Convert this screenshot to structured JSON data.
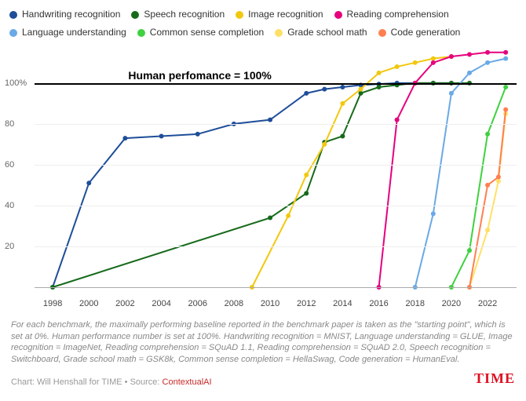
{
  "legend": [
    {
      "label": "Handwriting recognition",
      "color": "#1f4e99"
    },
    {
      "label": "Speech recognition",
      "color": "#166a1a"
    },
    {
      "label": "Image recognition",
      "color": "#f2c80f"
    },
    {
      "label": "Reading comprehension",
      "color": "#e6007e"
    },
    {
      "label": "Language understanding",
      "color": "#6aa9e6"
    },
    {
      "label": "Common sense completion",
      "color": "#3fd13f"
    },
    {
      "label": "Grade school math",
      "color": "#ffe066"
    },
    {
      "label": "Code generation",
      "color": "#ff7f50"
    }
  ],
  "legend_rows": [
    [
      0,
      1,
      2,
      3
    ],
    [
      4,
      5,
      6,
      7
    ]
  ],
  "chart": {
    "type": "line",
    "xlim": [
      1997,
      2023.6
    ],
    "ylim": [
      -5,
      118
    ],
    "xticks": [
      1998,
      2000,
      2002,
      2004,
      2006,
      2008,
      2010,
      2012,
      2014,
      2016,
      2018,
      2020,
      2022
    ],
    "yticks": [
      20,
      40,
      60,
      80
    ],
    "ylabel_100": "100%",
    "grid_color": "#eee",
    "axis_color": "#aaa",
    "marker_r": 3,
    "line_w": 2,
    "human_line_y": 100,
    "human_label": "Human perfomance = 100%",
    "series": [
      {
        "color": "#1f4e99",
        "pts": [
          [
            1998,
            0
          ],
          [
            2000,
            51
          ],
          [
            2002,
            73
          ],
          [
            2004,
            74
          ],
          [
            2006,
            75
          ],
          [
            2008,
            80
          ],
          [
            2010,
            82
          ],
          [
            2012,
            95
          ],
          [
            2013,
            97
          ],
          [
            2014,
            98
          ],
          [
            2015,
            99
          ],
          [
            2016,
            99.5
          ],
          [
            2017,
            100
          ],
          [
            2018,
            100
          ],
          [
            2019,
            100
          ],
          [
            2020,
            100
          ]
        ]
      },
      {
        "color": "#166a1a",
        "pts": [
          [
            1998,
            0
          ],
          [
            2010,
            34
          ],
          [
            2012,
            46
          ],
          [
            2013,
            71
          ],
          [
            2014,
            74
          ],
          [
            2015,
            95
          ],
          [
            2016,
            98
          ],
          [
            2017,
            99
          ],
          [
            2018,
            100
          ],
          [
            2019,
            100
          ],
          [
            2020,
            100
          ],
          [
            2021,
            100
          ]
        ]
      },
      {
        "color": "#f2c80f",
        "pts": [
          [
            2009,
            0
          ],
          [
            2011,
            35
          ],
          [
            2012,
            55
          ],
          [
            2013,
            70
          ],
          [
            2014,
            90
          ],
          [
            2015,
            97
          ],
          [
            2016,
            105
          ],
          [
            2017,
            108
          ],
          [
            2018,
            110
          ],
          [
            2019,
            112
          ],
          [
            2020,
            113
          ]
        ]
      },
      {
        "color": "#e6007e",
        "pts": [
          [
            2016,
            0
          ],
          [
            2017,
            82
          ],
          [
            2018,
            100
          ],
          [
            2019,
            110
          ],
          [
            2020,
            113
          ],
          [
            2021,
            114
          ],
          [
            2022,
            115
          ],
          [
            2023,
            115
          ]
        ]
      },
      {
        "color": "#6aa9e6",
        "pts": [
          [
            2018,
            0
          ],
          [
            2019,
            36
          ],
          [
            2020,
            95
          ],
          [
            2021,
            105
          ],
          [
            2022,
            110
          ],
          [
            2023,
            112
          ]
        ]
      },
      {
        "color": "#3fd13f",
        "pts": [
          [
            2020,
            0
          ],
          [
            2021,
            18
          ],
          [
            2022,
            75
          ],
          [
            2023,
            98
          ]
        ]
      },
      {
        "color": "#ffe066",
        "pts": [
          [
            2021,
            0
          ],
          [
            2022,
            28
          ],
          [
            2022.6,
            52
          ],
          [
            2023,
            85
          ]
        ]
      },
      {
        "color": "#ff7f50",
        "pts": [
          [
            2021,
            0
          ],
          [
            2022,
            50
          ],
          [
            2022.6,
            54
          ],
          [
            2023,
            87
          ]
        ]
      }
    ]
  },
  "footnote": "For each benchmark, the maximally performing baseline reported in the benchmark paper is taken as the \"starting point\", which is set at 0%. Human performance number is set at 100%. Handwriting recognition = MNIST, Language understanding = GLUE, Image recognition = ImageNet, Reading comprehension = SQuAD 1.1, Reading comprehension = SQuAD 2.0, Speech recognition = Switchboard, Grade school math = GSK8k, Common sense completion = HellaSwag, Code generation = HumanEval.",
  "credit_prefix": "Chart: Will Henshall for TIME • Source: ",
  "credit_source": "ContextualAI",
  "brand": "TIME"
}
